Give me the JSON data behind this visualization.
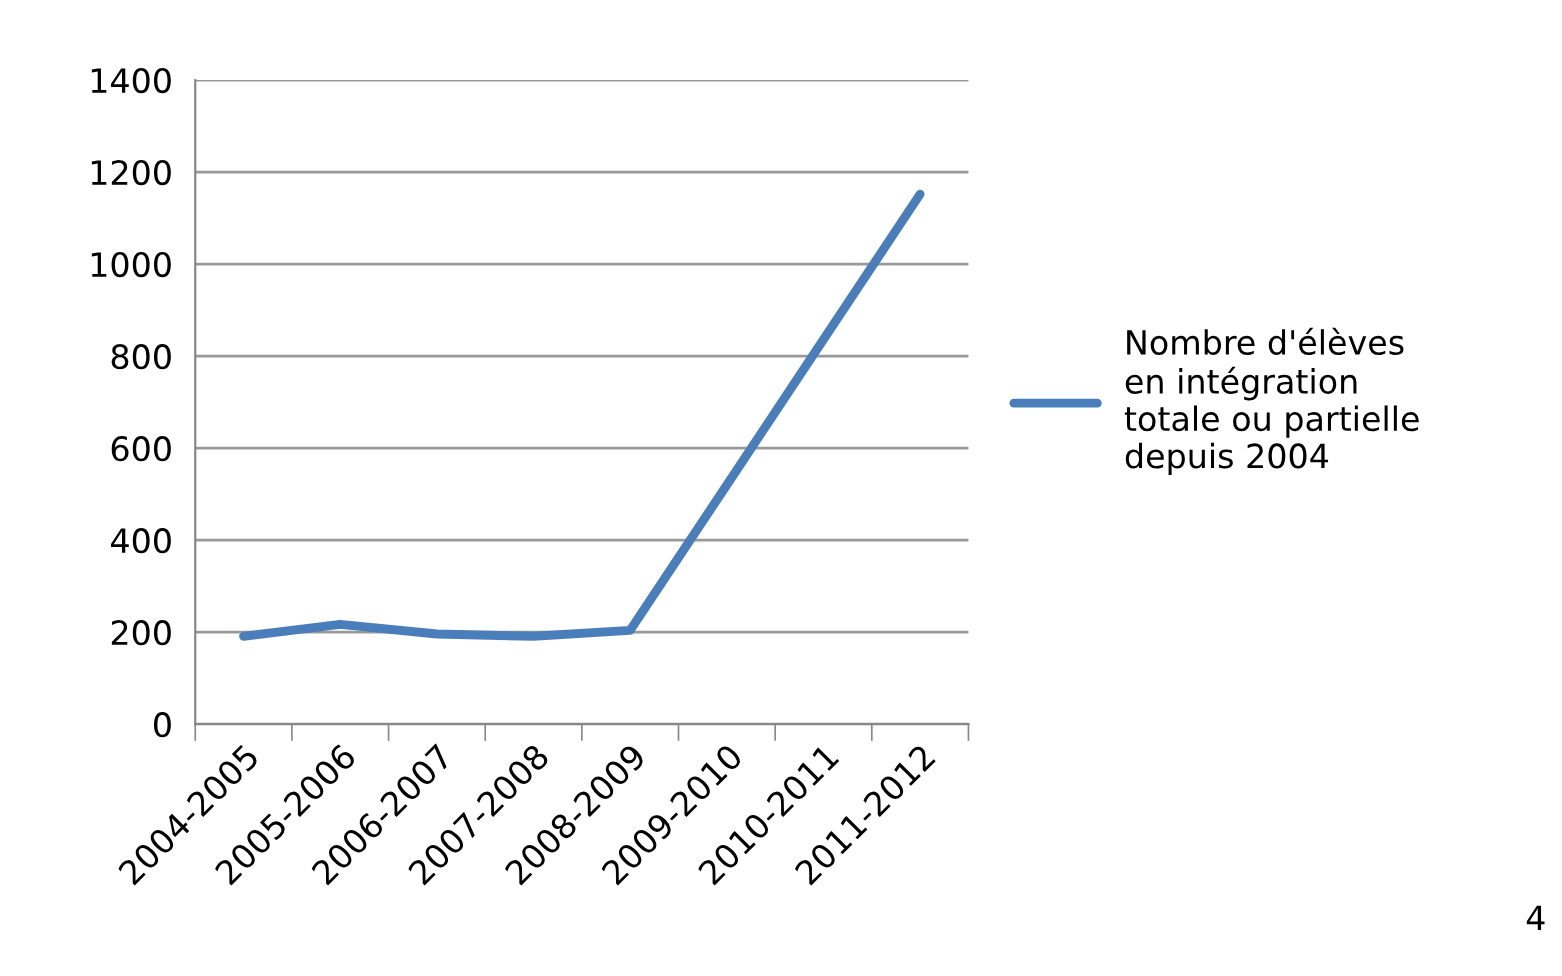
{
  "chart_data": {
    "type": "line",
    "categories": [
      "2004-2005",
      "2005-2006",
      "2006-2007",
      "2007-2008",
      "2008-2009",
      "2009-2010",
      "2010-2011",
      "2011-2012"
    ],
    "series": [
      {
        "name": "Nombre d'élèves\nen intégration\ntotale ou partielle\ndepuis 2004",
        "color": "#4a7ebb",
        "values": [
          191,
          217,
          196,
          191,
          204,
          520,
          836,
          1152
        ]
      }
    ],
    "ylim": [
      0,
      1400
    ],
    "yticks": [
      0,
      200,
      400,
      600,
      800,
      1000,
      1200,
      1400
    ],
    "grid": "y",
    "legend": "right",
    "marker": "none",
    "line_style": "solid",
    "annotations": [
      "4"
    ]
  }
}
